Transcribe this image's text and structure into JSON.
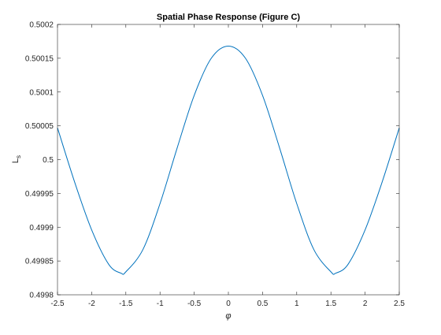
{
  "chart_data": {
    "type": "line",
    "title": "Spatial Phase Response (Figure C)",
    "xlabel": "φ",
    "ylabel": "L",
    "ylabel_subscript": "s",
    "xlim": [
      -2.5,
      2.5
    ],
    "ylim": [
      0.4998,
      0.5002
    ],
    "x_ticks": [
      -2.5,
      -2,
      -1.5,
      -1,
      -0.5,
      0,
      0.5,
      1,
      1.5,
      2,
      2.5
    ],
    "x_tick_labels": [
      "-2.5",
      "-2",
      "-1.5",
      "-1",
      "-0.5",
      "0",
      "0.5",
      "1",
      "1.5",
      "2",
      "2.5"
    ],
    "y_ticks": [
      0.4998,
      0.49985,
      0.4999,
      0.49995,
      0.5,
      0.50005,
      0.5001,
      0.50015,
      0.5002
    ],
    "y_tick_labels": [
      "0.4998",
      "0.49985",
      "0.4999",
      "0.49995",
      "0.5",
      "0.50005",
      "0.5001",
      "0.50015",
      "0.5002"
    ],
    "grid": false,
    "series": [
      {
        "color": "#0072bd",
        "x": [
          -2.5,
          -2.25,
          -2.0,
          -1.75,
          -1.5708,
          -1.5,
          -1.25,
          -1.0,
          -0.75,
          -0.5,
          -0.25,
          0.0,
          0.25,
          0.5,
          0.75,
          1.0,
          1.25,
          1.5,
          1.5708,
          1.75,
          2.0,
          2.25,
          2.5
        ],
        "y": [
          0.500047,
          0.499967,
          0.499896,
          0.499845,
          0.499832,
          0.499834,
          0.499867,
          0.499935,
          0.500017,
          0.500095,
          0.50015,
          0.500168,
          0.50015,
          0.500095,
          0.500017,
          0.499935,
          0.499867,
          0.499834,
          0.499832,
          0.499845,
          0.499896,
          0.499967,
          0.500047
        ]
      }
    ]
  }
}
